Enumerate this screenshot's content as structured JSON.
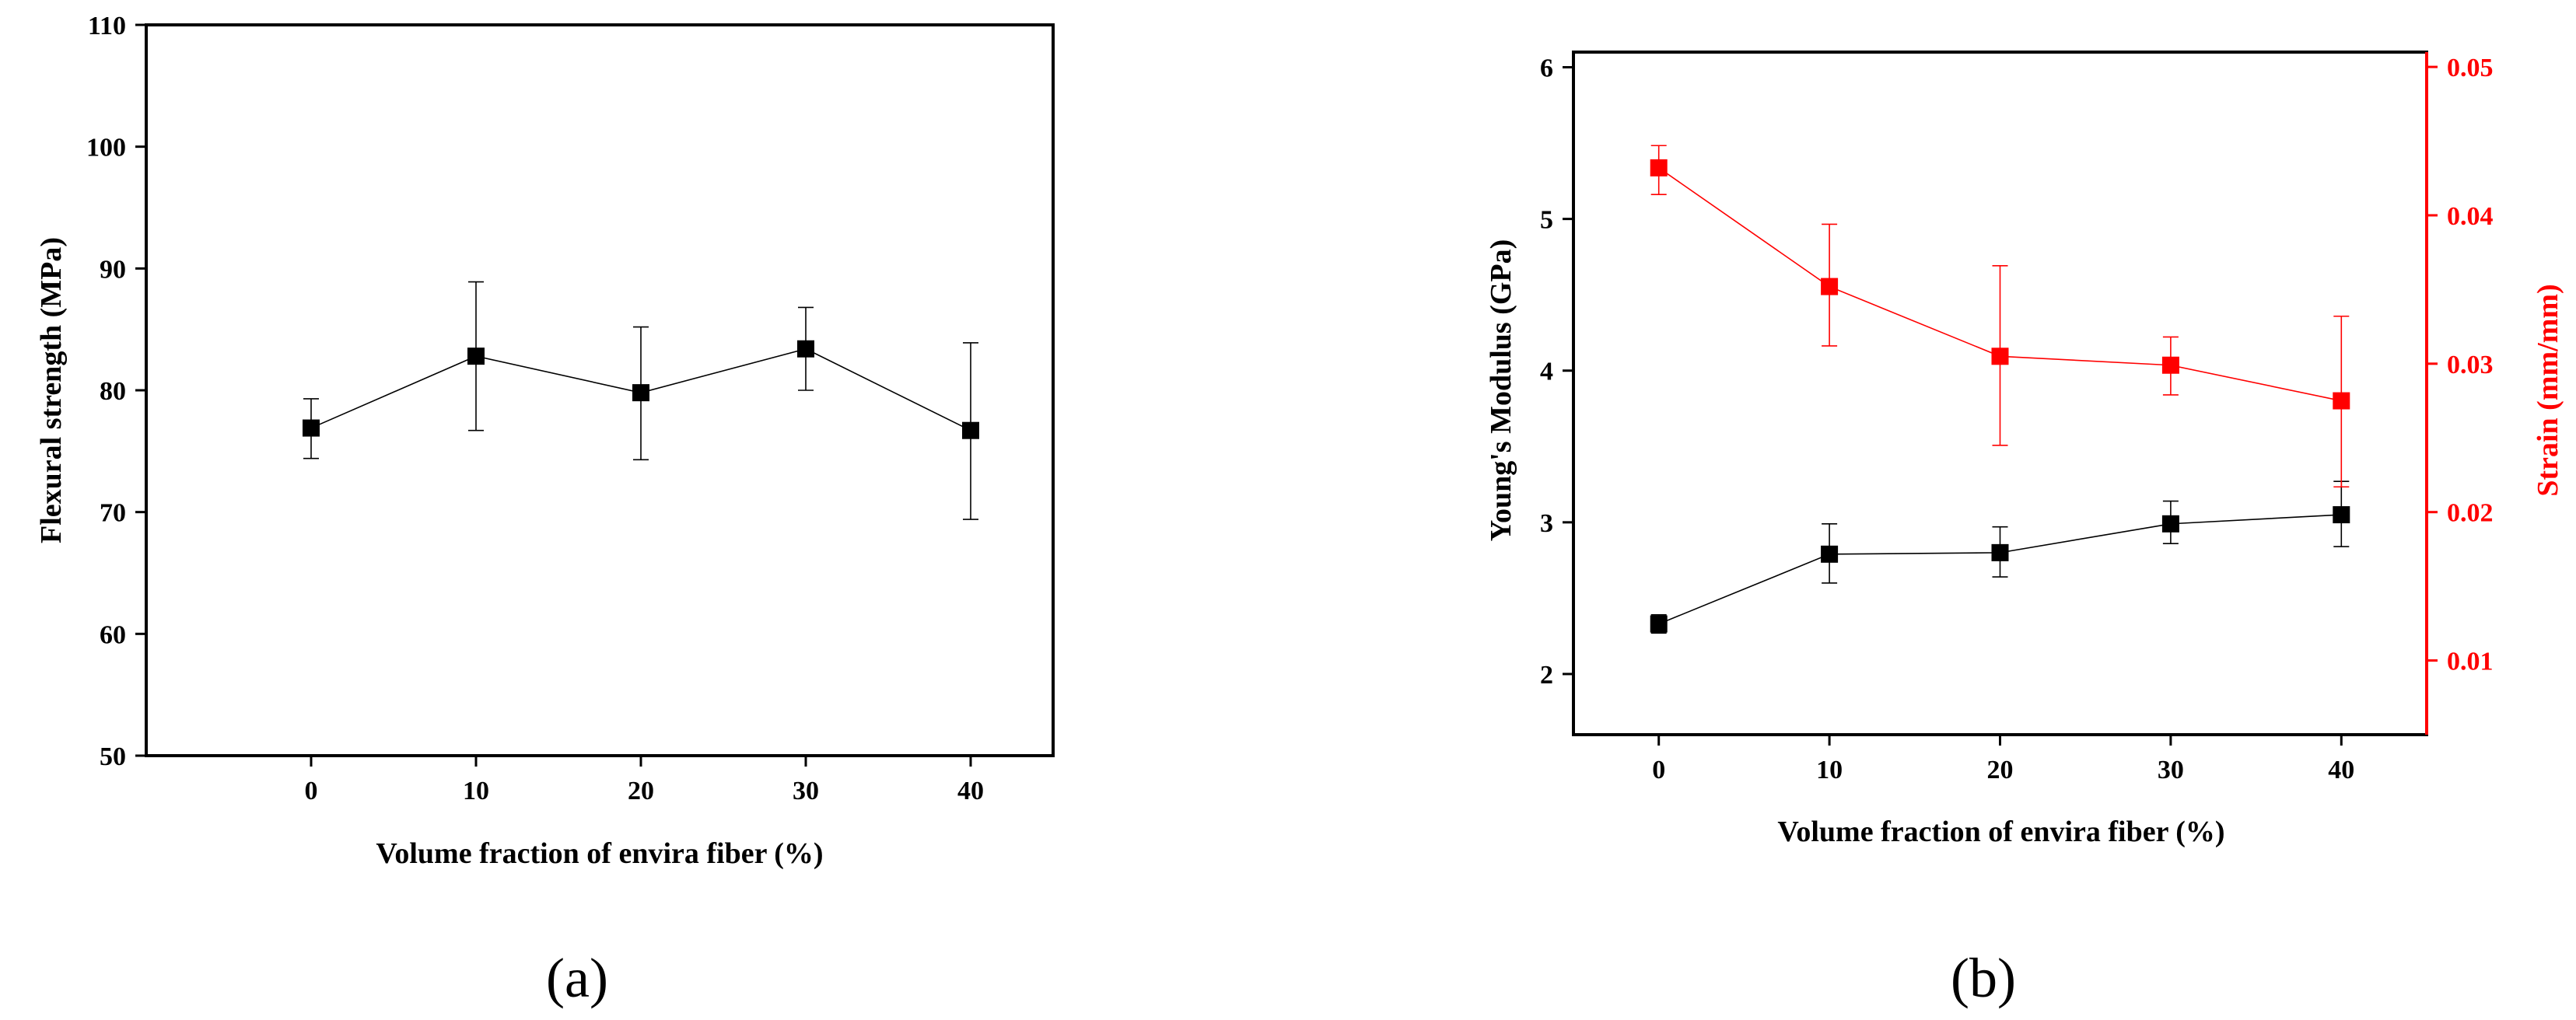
{
  "colors": {
    "primary": "#000000",
    "secondary": "#ff0000",
    "background": "#ffffff"
  },
  "chart_data": [
    {
      "panel_label": "(a)",
      "type": "line",
      "title": "",
      "xlabel": "Volume fraction of envira fiber (%)",
      "ylabel": "Flexural strength (MPa)",
      "xlim": [
        -10,
        45
      ],
      "ylim": [
        50,
        110
      ],
      "x_ticks": [
        0,
        10,
        20,
        30,
        40
      ],
      "y_ticks": [
        50,
        60,
        70,
        80,
        90,
        100,
        110
      ],
      "grid": false,
      "legend": "none",
      "series": [
        {
          "color": "#000000",
          "marker": "square",
          "x": [
            0,
            10,
            20,
            30,
            40
          ],
          "y": [
            76.9,
            82.8,
            79.8,
            83.4,
            76.7
          ],
          "err_low": [
            74.4,
            76.7,
            74.3,
            80.0,
            69.4
          ],
          "err_high": [
            79.3,
            88.9,
            85.2,
            86.8,
            83.9
          ]
        }
      ]
    },
    {
      "panel_label": "(b)",
      "type": "line",
      "title": "",
      "xlabel": "Volume fraction of envira fiber (%)",
      "ylabel": "Young's Modulus  (GPa)",
      "ylabel_right": "Strain (mm/mm)",
      "xlim": [
        -5,
        45
      ],
      "ylim": [
        1.6,
        6.1
      ],
      "ylim_right": [
        0.005,
        0.051
      ],
      "x_ticks": [
        0,
        10,
        20,
        30,
        40
      ],
      "y_ticks": [
        2,
        3,
        4,
        5,
        6
      ],
      "y_ticks_right": [
        0.01,
        0.02,
        0.03,
        0.04,
        0.05
      ],
      "grid": false,
      "legend": "none",
      "series": [
        {
          "axis": "left",
          "color": "#000000",
          "marker": "square",
          "x": [
            0,
            10,
            20,
            30,
            40
          ],
          "y": [
            2.33,
            2.79,
            2.8,
            2.99,
            3.05
          ],
          "err_low": [
            2.27,
            2.6,
            2.64,
            2.86,
            2.84
          ],
          "err_high": [
            2.39,
            2.99,
            2.97,
            3.14,
            3.27
          ]
        },
        {
          "axis": "right",
          "color": "#ff0000",
          "marker": "square",
          "x": [
            0,
            10,
            20,
            30,
            40
          ],
          "y": [
            0.0432,
            0.0352,
            0.0305,
            0.0299,
            0.0275
          ],
          "err_low": [
            0.0414,
            0.0312,
            0.0245,
            0.0279,
            0.0217
          ],
          "err_high": [
            0.0447,
            0.0394,
            0.0366,
            0.0318,
            0.0332
          ]
        }
      ]
    }
  ]
}
